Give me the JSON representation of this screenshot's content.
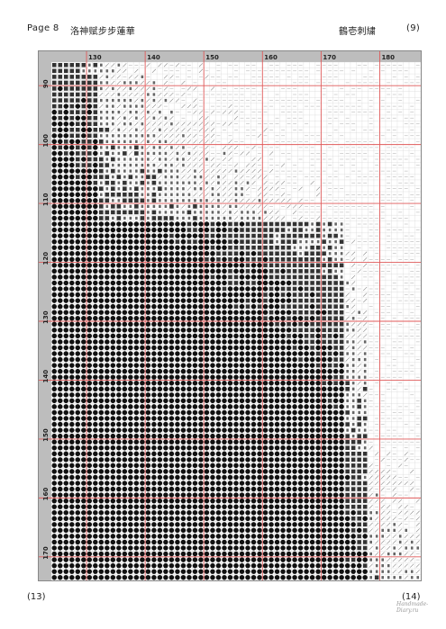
{
  "header": {
    "page_label": "Page 8",
    "title": "洛神赋步步蓮華",
    "author": "鶴壱刺繍",
    "page_number": "(9)"
  },
  "footer": {
    "left_number": "(13)",
    "right_number": "(14)",
    "watermark": "Handmade-Diary.ru"
  },
  "pattern": {
    "column_labels": [
      "130",
      "140",
      "150",
      "160",
      "170",
      "180"
    ],
    "row_labels": [
      "90",
      "100",
      "110",
      "120",
      "130",
      "140",
      "150",
      "160",
      "170"
    ],
    "colors": {
      "major_grid": "#e05a5a",
      "ruler_bg": "#bdbdbd",
      "dark_symbol": "#111111",
      "light_cell": "#ffffff"
    }
  }
}
